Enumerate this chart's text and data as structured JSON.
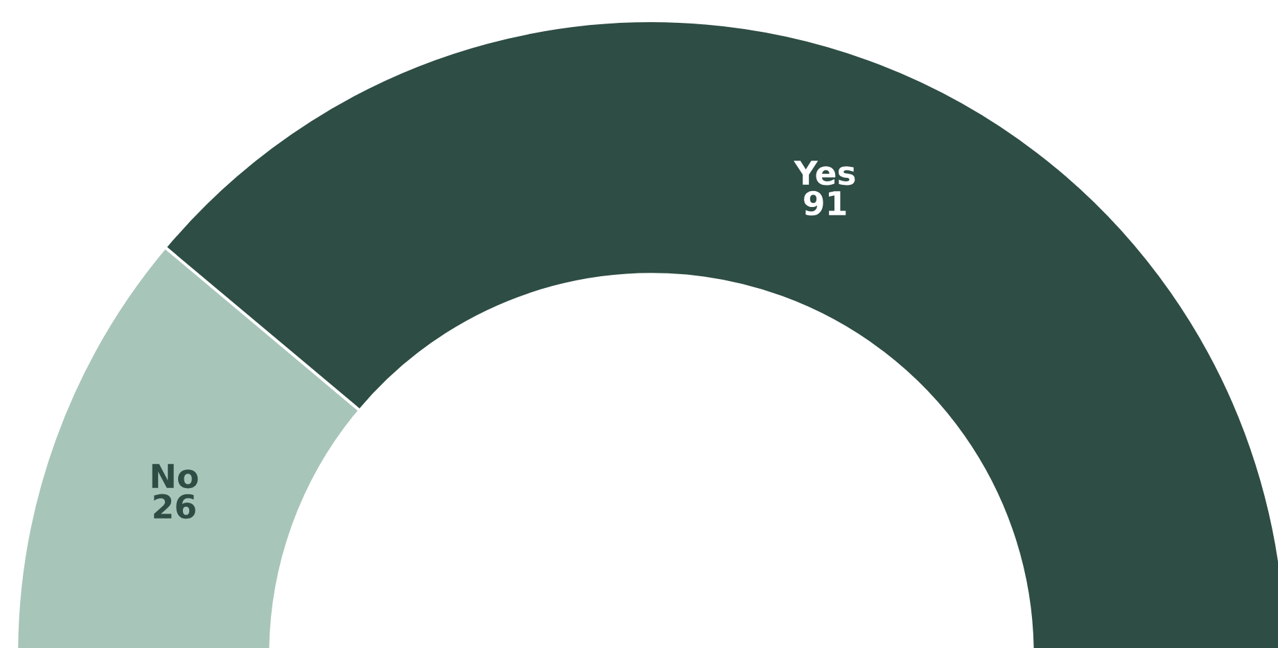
{
  "chart_data": {
    "type": "donut",
    "categories": [
      "No",
      "Yes"
    ],
    "values": [
      26,
      91
    ],
    "colors": [
      "#a8c5b9",
      "#2e4d44"
    ],
    "data_labels": true
  }
}
